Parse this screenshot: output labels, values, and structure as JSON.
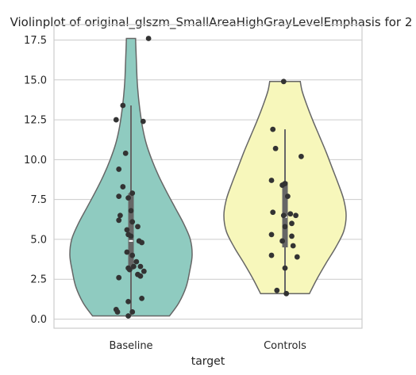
{
  "chart_data": {
    "type": "violin",
    "title": "Violinplot of original_glszm_SmallAreaHighGrayLevelEmphasis for 2",
    "xlabel": "target",
    "ylabel": "",
    "categories": [
      "Baseline",
      "Controls"
    ],
    "ylim": [
      -0.6,
      18.9
    ],
    "yticks": [
      "0.0",
      "2.5",
      "5.0",
      "7.5",
      "10.0",
      "12.5",
      "15.0",
      "17.5"
    ],
    "ytick_values": [
      0,
      2.5,
      5,
      7.5,
      10,
      12.5,
      15,
      17.5
    ],
    "grid": true,
    "colors": {
      "Baseline": "#8fcbc0",
      "Controls": "#f7f7bb"
    },
    "series": [
      {
        "category": "Baseline",
        "min": 0.2,
        "max": 17.6,
        "whisker": [
          0.2,
          13.4
        ],
        "q1": 3.1,
        "median": 4.9,
        "q3": 7.9,
        "density": [
          [
            0.2,
            0.63
          ],
          [
            1.0,
            0.78
          ],
          [
            2.0,
            0.9
          ],
          [
            3.0,
            0.96
          ],
          [
            4.0,
            1.0
          ],
          [
            5.0,
            0.97
          ],
          [
            6.0,
            0.86
          ],
          [
            7.0,
            0.72
          ],
          [
            8.0,
            0.58
          ],
          [
            9.0,
            0.45
          ],
          [
            10.0,
            0.34
          ],
          [
            11.0,
            0.25
          ],
          [
            12.0,
            0.19
          ],
          [
            13.0,
            0.15
          ],
          [
            14.0,
            0.12
          ],
          [
            15.0,
            0.1
          ],
          [
            16.0,
            0.09
          ],
          [
            17.0,
            0.08
          ],
          [
            17.6,
            0.075
          ]
        ],
        "points": [
          [
            0.65,
            17.6
          ],
          [
            -0.3,
            13.4
          ],
          [
            -0.55,
            12.5
          ],
          [
            0.45,
            12.4
          ],
          [
            -0.2,
            10.4
          ],
          [
            -0.45,
            9.4
          ],
          [
            -0.3,
            8.3
          ],
          [
            0.05,
            7.9
          ],
          [
            -0.45,
            7.7
          ],
          [
            -0.1,
            7.6
          ],
          [
            0.0,
            6.8
          ],
          [
            -0.4,
            6.5
          ],
          [
            -0.45,
            6.2
          ],
          [
            0.05,
            6.1
          ],
          [
            0.25,
            5.8
          ],
          [
            -0.15,
            5.6
          ],
          [
            -0.1,
            5.3
          ],
          [
            0.0,
            5.2
          ],
          [
            0.3,
            4.9
          ],
          [
            0.4,
            4.8
          ],
          [
            -0.15,
            4.2
          ],
          [
            0.05,
            4.0
          ],
          [
            0.2,
            3.6
          ],
          [
            0.1,
            3.3
          ],
          [
            0.35,
            3.3
          ],
          [
            -0.1,
            3.2
          ],
          [
            -0.05,
            3.1
          ],
          [
            0.48,
            3.0
          ],
          [
            0.25,
            2.8
          ],
          [
            0.35,
            2.7
          ],
          [
            -0.45,
            2.6
          ],
          [
            0.4,
            1.3
          ],
          [
            -0.1,
            1.1
          ],
          [
            -0.55,
            0.6
          ],
          [
            -0.5,
            0.45
          ],
          [
            0.05,
            0.45
          ],
          [
            -0.1,
            0.2
          ]
        ]
      },
      {
        "category": "Controls",
        "min": 1.6,
        "max": 14.9,
        "whisker": [
          1.6,
          11.9
        ],
        "q1": 4.5,
        "median": 6.4,
        "q3": 8.6,
        "density": [
          [
            1.6,
            0.4
          ],
          [
            2.5,
            0.52
          ],
          [
            3.5,
            0.67
          ],
          [
            4.5,
            0.83
          ],
          [
            5.5,
            0.96
          ],
          [
            6.5,
            1.0
          ],
          [
            7.5,
            0.96
          ],
          [
            8.5,
            0.87
          ],
          [
            9.5,
            0.77
          ],
          [
            10.5,
            0.67
          ],
          [
            11.5,
            0.56
          ],
          [
            12.5,
            0.45
          ],
          [
            13.5,
            0.35
          ],
          [
            14.3,
            0.28
          ],
          [
            14.9,
            0.25
          ]
        ],
        "points": [
          [
            -0.05,
            14.9
          ],
          [
            -0.45,
            11.9
          ],
          [
            -0.35,
            10.7
          ],
          [
            0.6,
            10.2
          ],
          [
            -0.5,
            8.7
          ],
          [
            0.0,
            8.5
          ],
          [
            -0.1,
            8.4
          ],
          [
            0.1,
            7.7
          ],
          [
            -0.45,
            6.7
          ],
          [
            -0.05,
            6.5
          ],
          [
            0.2,
            6.6
          ],
          [
            0.4,
            6.5
          ],
          [
            0.25,
            6.0
          ],
          [
            0.0,
            5.8
          ],
          [
            0.25,
            5.2
          ],
          [
            -0.5,
            5.3
          ],
          [
            -0.1,
            4.9
          ],
          [
            0.3,
            4.6
          ],
          [
            -0.5,
            4.0
          ],
          [
            0.45,
            3.9
          ],
          [
            0.0,
            3.2
          ],
          [
            -0.3,
            1.8
          ],
          [
            0.05,
            1.6
          ]
        ]
      }
    ]
  }
}
